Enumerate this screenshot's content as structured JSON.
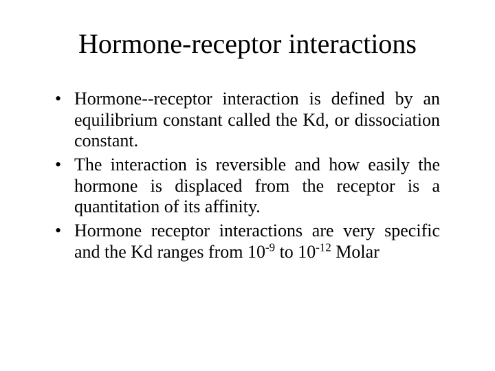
{
  "title_fontsize": 40,
  "body_fontsize": 26,
  "text_color": "#000000",
  "background_color": "#ffffff",
  "font_family": "Times New Roman",
  "title": "Hormone-receptor interactions",
  "bullets": [
    {
      "text": "Hormone--receptor interaction is defined by an equilibrium constant called the Kd, or dissociation constant."
    },
    {
      "text": "The interaction is reversible and how easily the hormone is displaced from the receptor is a quantitation of its affinity."
    },
    {
      "prefix": "Hormone receptor interactions are very specific and the Kd ranges from 10",
      "sup1": "-9",
      "mid": " to 10",
      "sup2": "-12",
      "suffix": " Molar"
    }
  ]
}
